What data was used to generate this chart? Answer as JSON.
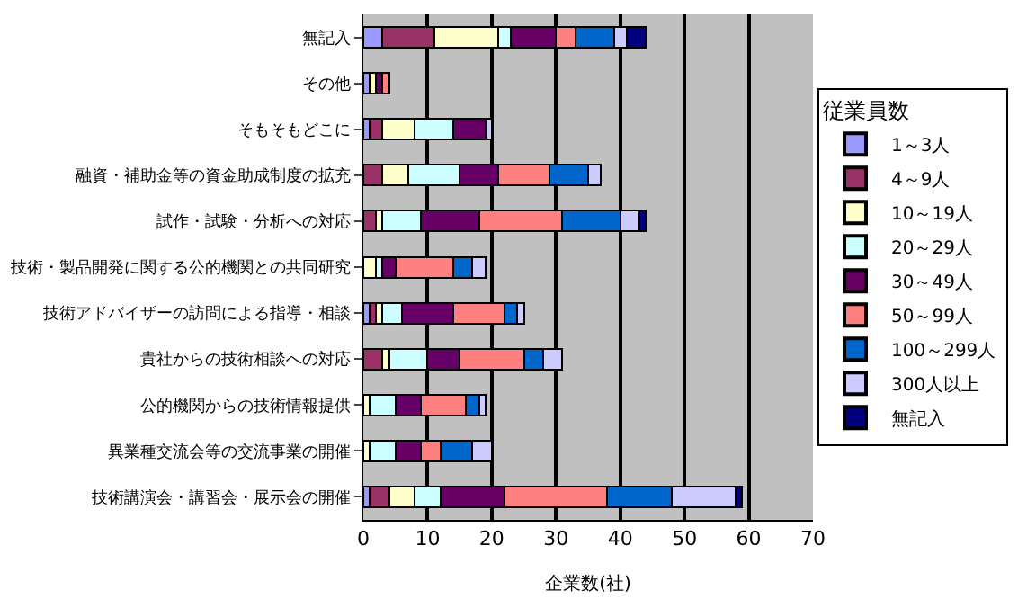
{
  "chart_data": {
    "type": "bar",
    "orientation": "horizontal",
    "stacked": true,
    "xlabel": "企業数(社)",
    "legend_title": "従業員数",
    "legend": "right",
    "grid": "x",
    "xlim": [
      0,
      70
    ],
    "xticks": [
      0,
      10,
      20,
      30,
      40,
      50,
      60,
      70
    ],
    "categories": [
      "無記入",
      "その他",
      "そもそもどこに",
      "融資・補助金等の資金助成制度の拡充",
      "試作・試験・分析への対応",
      "技術・製品開発に関する公的機関との共同研究",
      "技術アドバイザーの訪問による指導・相談",
      "貴社からの技術相談への対応",
      "公的機関からの技術情報提供",
      "異業種交流会等の交流事業の開催",
      "技術講演会・講習会・展示会の開催"
    ],
    "series": [
      {
        "name": "1～3人",
        "color": "#9999ff",
        "values": [
          3,
          1,
          1,
          0,
          0,
          0,
          1,
          0,
          0,
          0,
          1
        ]
      },
      {
        "name": "4～9人",
        "color": "#993366",
        "values": [
          8,
          0,
          2,
          3,
          2,
          0,
          1,
          3,
          0,
          0,
          3
        ]
      },
      {
        "name": "10～19人",
        "color": "#ffffcc",
        "values": [
          10,
          1,
          5,
          4,
          1,
          2,
          1,
          1,
          1,
          1,
          4
        ]
      },
      {
        "name": "20～29人",
        "color": "#ccffff",
        "values": [
          2,
          0,
          6,
          8,
          6,
          1,
          3,
          6,
          4,
          4,
          4
        ]
      },
      {
        "name": "30～49人",
        "color": "#660066",
        "values": [
          7,
          1,
          5,
          6,
          9,
          2,
          8,
          5,
          4,
          4,
          10
        ]
      },
      {
        "name": "50～99人",
        "color": "#ff8080",
        "values": [
          3,
          1,
          0,
          8,
          13,
          9,
          8,
          10,
          7,
          3,
          16
        ]
      },
      {
        "name": "100～299人",
        "color": "#0066cc",
        "values": [
          6,
          0,
          0,
          6,
          9,
          3,
          2,
          3,
          2,
          5,
          10
        ]
      },
      {
        "name": "300人以上",
        "color": "#ccccff",
        "values": [
          2,
          0,
          1,
          2,
          3,
          2,
          1,
          3,
          1,
          3,
          10
        ]
      },
      {
        "name": "無記入",
        "color": "#000080",
        "values": [
          3,
          0,
          0,
          0,
          1,
          0,
          0,
          0,
          0,
          0,
          1
        ]
      }
    ]
  }
}
